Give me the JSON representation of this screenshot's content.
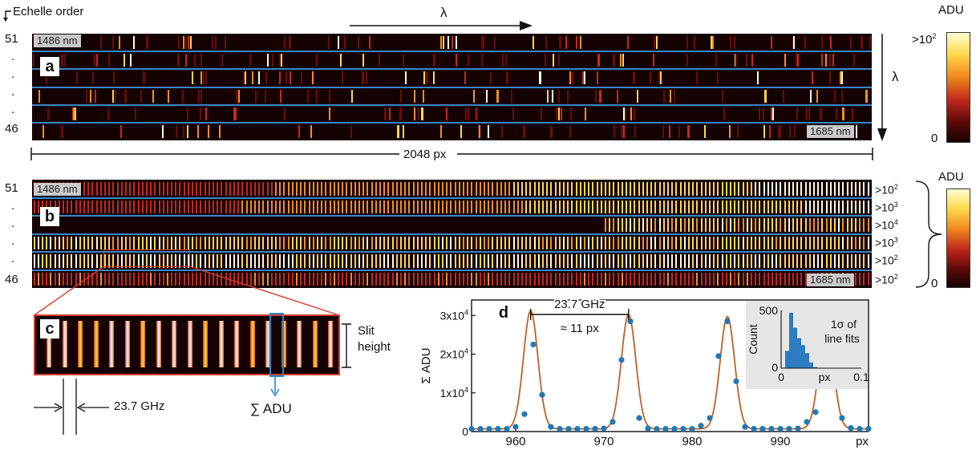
{
  "header": {
    "echelle_label": "Echelle order",
    "lambda": "λ"
  },
  "orders": {
    "top": "51",
    "bottom": "46",
    "dot": "."
  },
  "panel_a": {
    "letter": "a",
    "start_nm": "1486 nm",
    "end_nm": "1685 nm",
    "width_label": "2048 px",
    "vertical_lambda": "λ"
  },
  "colorbar_a": {
    "unit": "ADU",
    "max_base": ">10",
    "max_exp": "2",
    "min": "0"
  },
  "panel_b": {
    "letter": "b",
    "start_nm": "1486 nm",
    "end_nm": "1685 nm",
    "row_scales": [
      {
        "base": ">10",
        "exp": "2"
      },
      {
        "base": ">10",
        "exp": "3"
      },
      {
        "base": ">10",
        "exp": "4"
      },
      {
        "base": ">10",
        "exp": "3"
      },
      {
        "base": ">10",
        "exp": "2"
      },
      {
        "base": ">10",
        "exp": "2"
      }
    ]
  },
  "colorbar_b": {
    "unit": "ADU",
    "min": "0"
  },
  "panel_c": {
    "letter": "c",
    "slit_label_1": "Slit",
    "slit_label_2": "height",
    "spacing_label": "23.7 GHz",
    "sum_label": "∑ ADU"
  },
  "colors": {
    "panel_bg": "#150203",
    "separator": "#3a84c8",
    "accent": "#d83a2e",
    "fit": "#c0602a",
    "points": "#1f78b4"
  },
  "chart_data": [
    {
      "type": "scatter",
      "title": "",
      "panel_letter": "d",
      "xlabel": "px",
      "ylabel": "Σ ADU",
      "xlim": [
        955,
        1000
      ],
      "ylim": [
        0,
        34000
      ],
      "xticks": [
        960,
        970,
        980,
        990
      ],
      "yticks": [
        {
          "value": 0,
          "base": "0",
          "exp": ""
        },
        {
          "value": 10000,
          "base": "1x10",
          "exp": "4"
        },
        {
          "value": 20000,
          "base": "2x10",
          "exp": "4"
        },
        {
          "value": 30000,
          "base": "3x10",
          "exp": "4"
        }
      ],
      "annotation_1": "23.7 GHz",
      "annotation_2": "≈ 11 px",
      "annotation_range": [
        961.7,
        972.8
      ],
      "fit_peaks": [
        {
          "center": 961.7,
          "amp": 30500,
          "sigma": 0.82
        },
        {
          "center": 972.8,
          "amp": 29500,
          "sigma": 0.82
        },
        {
          "center": 984.0,
          "amp": 29000,
          "sigma": 0.82
        },
        {
          "center": 995.2,
          "amp": 27000,
          "sigma": 0.82
        }
      ],
      "points": [
        [
          955,
          700
        ],
        [
          956,
          700
        ],
        [
          957,
          700
        ],
        [
          958,
          700
        ],
        [
          959,
          700
        ],
        [
          960,
          1200
        ],
        [
          961,
          4500
        ],
        [
          962,
          22500
        ],
        [
          963,
          9500
        ],
        [
          964,
          1200
        ],
        [
          965,
          700
        ],
        [
          966,
          700
        ],
        [
          967,
          700
        ],
        [
          968,
          700
        ],
        [
          969,
          700
        ],
        [
          970,
          800
        ],
        [
          971,
          2500
        ],
        [
          972,
          18500
        ],
        [
          973,
          28500
        ],
        [
          974,
          3500
        ],
        [
          975,
          800
        ],
        [
          976,
          700
        ],
        [
          977,
          700
        ],
        [
          978,
          700
        ],
        [
          979,
          700
        ],
        [
          980,
          700
        ],
        [
          981,
          1500
        ],
        [
          982,
          3500
        ],
        [
          983,
          19500
        ],
        [
          984,
          28500
        ],
        [
          985,
          13000
        ],
        [
          986,
          1200
        ],
        [
          987,
          700
        ],
        [
          988,
          700
        ],
        [
          989,
          700
        ],
        [
          990,
          700
        ],
        [
          991,
          700
        ],
        [
          992,
          800
        ],
        [
          993,
          2500
        ],
        [
          994,
          5000
        ],
        [
          995,
          19500
        ],
        [
          996,
          19000
        ],
        [
          997,
          3500
        ],
        [
          998,
          900
        ],
        [
          999,
          700
        ],
        [
          1000,
          700
        ]
      ]
    },
    {
      "type": "bar",
      "title": "1σ of line fits",
      "xlabel": "px",
      "ylabel": "Count",
      "xlim": [
        0,
        0.1
      ],
      "ylim": [
        0,
        500
      ],
      "xticks": [
        "0",
        "0.1"
      ],
      "yticks": [
        "0",
        "500"
      ],
      "bin_edges": [
        0.005,
        0.01,
        0.015,
        0.02,
        0.025,
        0.03,
        0.035,
        0.04,
        0.045
      ],
      "values": [
        150,
        480,
        350,
        260,
        200,
        130,
        50,
        10
      ]
    }
  ]
}
